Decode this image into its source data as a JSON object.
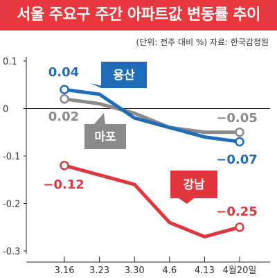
{
  "title": "서울 주요구 주간 아파트값 변동률 추이",
  "source": "(단위: 전주 대비 %) 자료: 한국감정원",
  "chart_data": {
    "type": "line",
    "categories": [
      "3.16",
      "3.23",
      "3.30",
      "4.6",
      "4.13",
      "4월20일"
    ],
    "yticks": [
      "0.1",
      "0",
      "-0.1",
      "-0.2",
      "-0.3"
    ],
    "ylim": [
      -0.3,
      0.1
    ],
    "grid": false,
    "series": [
      {
        "name": "용산",
        "color": "#1f6dba",
        "values": [
          0.04,
          0.03,
          -0.02,
          -0.04,
          -0.06,
          -0.07
        ],
        "labels": {
          "first": "0.04",
          "last": "−0.07"
        }
      },
      {
        "name": "마포",
        "color": "#8a8a8a",
        "values": [
          0.02,
          0.01,
          -0.01,
          -0.04,
          -0.05,
          -0.05
        ],
        "labels": {
          "first": "0.02",
          "last": "−0.05"
        }
      },
      {
        "name": "강남",
        "color": "#e0363e",
        "values": [
          -0.12,
          -0.14,
          -0.16,
          -0.24,
          -0.27,
          -0.25
        ],
        "labels": {
          "first": "−0.12",
          "last": "−0.25"
        }
      }
    ]
  }
}
